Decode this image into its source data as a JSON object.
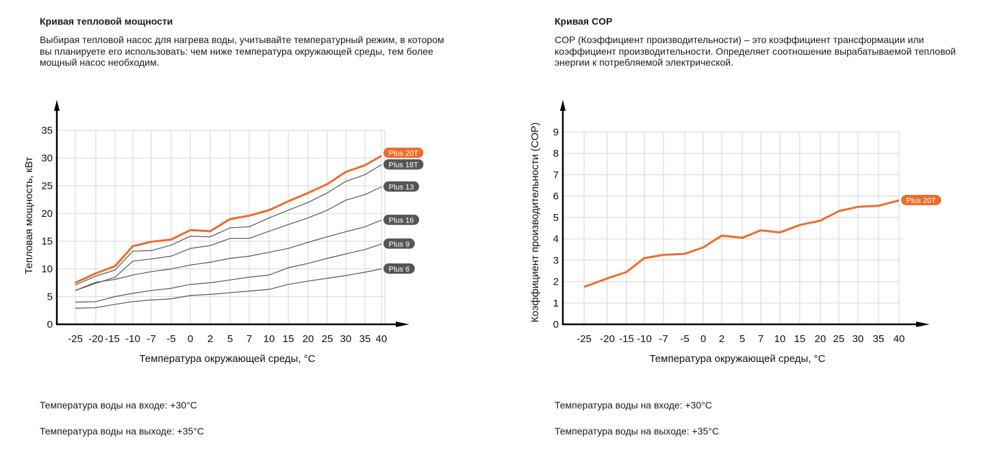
{
  "left": {
    "title": "Кривая тепловой мощности",
    "description": "Выбирая тепловой насос для нагрева воды, учитывайте температурный режим, в котором вы планируете его использовать: чем ниже температура окружающей среды, тем более мощный насос необходим.",
    "water_in": "Температура воды на входе: +30°C",
    "water_out": "Температура воды на выходе: +35°C"
  },
  "right": {
    "title": "Кривая COP",
    "description": "COP (Коэффициент производительности) – это коэффициент трансформации или коэффициент производительности. Определяет соотношение вырабатываемой тепловой энергии к потребляемой электрической.",
    "water_in": "Температура воды на входе: +30°C",
    "water_out": "Температура воды на выходе: +35°C"
  },
  "colors": {
    "accent": "#ef6b2a",
    "series_gray": "#555555",
    "label_gray": "#555555",
    "grid": "#dddddd"
  },
  "chart_data": [
    {
      "type": "line",
      "title": "Кривая тепловой мощности",
      "xlabel": "Температура окружающей среды, °C",
      "ylabel": "Тепловая мощность, кВт",
      "categories": [
        "-25",
        "-20",
        "-15",
        "-10",
        "-7",
        "-5",
        "0",
        "2",
        "5",
        "7",
        "10",
        "15",
        "20",
        "25",
        "30",
        "35",
        "40"
      ],
      "yticks": [
        "0",
        "5",
        "10",
        "15",
        "20",
        "25",
        "30",
        "35"
      ],
      "ylim": [
        0,
        35
      ],
      "grid": true,
      "legend": "right end labels",
      "series": [
        {
          "name": "Plus 20T",
          "highlight": true,
          "values": [
            7.5,
            9.2,
            10.5,
            14.1,
            14.9,
            15.3,
            17.0,
            16.8,
            19.0,
            19.6,
            20.6,
            22.2,
            23.7,
            25.3,
            27.5,
            28.7,
            30.4
          ]
        },
        {
          "name": "Plus 18T",
          "values": [
            7.1,
            8.7,
            9.8,
            13.2,
            13.3,
            14.3,
            15.9,
            15.8,
            17.4,
            17.6,
            19.2,
            20.6,
            22.0,
            23.7,
            25.8,
            27.0,
            28.8
          ]
        },
        {
          "name": "Plus 13",
          "values": [
            6.1,
            7.4,
            8.5,
            11.4,
            11.8,
            12.3,
            13.7,
            14.2,
            15.5,
            15.5,
            16.8,
            18.0,
            19.2,
            20.6,
            22.4,
            23.4,
            24.8
          ]
        },
        {
          "name": "Plus 16",
          "values": [
            6.1,
            7.6,
            8.1,
            8.9,
            9.5,
            10.0,
            10.7,
            11.2,
            11.9,
            12.3,
            13.0,
            13.7,
            14.8,
            15.8,
            16.7,
            17.6,
            18.8
          ]
        },
        {
          "name": "Plus 9",
          "values": [
            4.0,
            4.1,
            5.0,
            5.6,
            6.1,
            6.5,
            7.2,
            7.5,
            8.0,
            8.5,
            8.9,
            10.2,
            11.0,
            11.9,
            12.7,
            13.5,
            14.5
          ]
        },
        {
          "name": "Plus 6",
          "values": [
            2.9,
            3.0,
            3.6,
            4.1,
            4.4,
            4.6,
            5.2,
            5.4,
            5.7,
            6.0,
            6.3,
            7.2,
            7.8,
            8.3,
            8.8,
            9.4,
            10.0
          ]
        }
      ]
    },
    {
      "type": "line",
      "title": "Кривая COP",
      "xlabel": "Температура окружающей среды, °C",
      "ylabel": "Коэффициент производительности (COP)",
      "categories": [
        "-25",
        "-20",
        "-15",
        "-10",
        "-7",
        "-5",
        "0",
        "2",
        "5",
        "7",
        "10",
        "15",
        "20",
        "25",
        "30",
        "35",
        "40"
      ],
      "yticks": [
        "0",
        "1",
        "2",
        "3",
        "4",
        "5",
        "6",
        "7",
        "8",
        "9"
      ],
      "ylim": [
        0,
        9
      ],
      "grid": true,
      "legend": "right end label",
      "series": [
        {
          "name": "Plus 20T",
          "highlight": true,
          "values": [
            1.75,
            2.15,
            2.45,
            3.1,
            3.25,
            3.3,
            3.6,
            4.15,
            4.05,
            4.4,
            4.3,
            4.65,
            4.85,
            5.3,
            5.5,
            5.55,
            5.8
          ]
        }
      ]
    }
  ]
}
